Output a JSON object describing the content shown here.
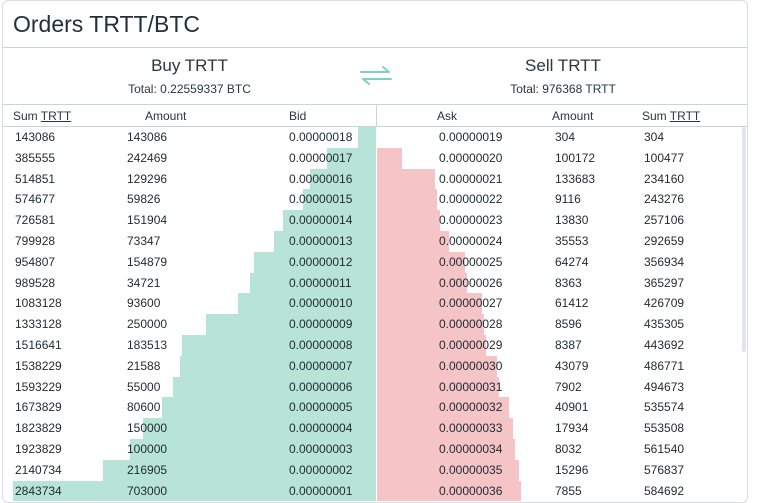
{
  "header": {
    "title": "Orders TRTT/BTC"
  },
  "buy": {
    "heading": "Buy TRTT",
    "total": "Total: 0.22559337 BTC"
  },
  "sell": {
    "heading": "Sell TRTT",
    "total": "Total: 976368 TRTT"
  },
  "columns": {
    "buy_sum_prefix": "Sum ",
    "buy_sum_unit": "TRTT",
    "buy_amount": "Amount",
    "bid": "Bid",
    "ask": "Ask",
    "sell_amount": "Amount",
    "sell_sum_prefix": "Sum ",
    "sell_sum_unit": "TRTT"
  },
  "colors": {
    "buy_depth": "#b8e4d7",
    "sell_depth": "#f5c4c7",
    "swap_icon": "#7fd0c8"
  },
  "max_sum_buy": 2843734,
  "max_sum_sell": 976368,
  "rows": [
    {
      "buy_sum": "143086",
      "buy_amount": "143086",
      "bid": "0.00000018",
      "ask": "0.00000019",
      "sell_amount": "304",
      "sell_sum": "304"
    },
    {
      "buy_sum": "385555",
      "buy_amount": "242469",
      "bid": "0.00000017",
      "ask": "0.00000020",
      "sell_amount": "100172",
      "sell_sum": "100477"
    },
    {
      "buy_sum": "514851",
      "buy_amount": "129296",
      "bid": "0.00000016",
      "ask": "0.00000021",
      "sell_amount": "133683",
      "sell_sum": "234160"
    },
    {
      "buy_sum": "574677",
      "buy_amount": "59826",
      "bid": "0.00000015",
      "ask": "0.00000022",
      "sell_amount": "9116",
      "sell_sum": "243276"
    },
    {
      "buy_sum": "726581",
      "buy_amount": "151904",
      "bid": "0.00000014",
      "ask": "0.00000023",
      "sell_amount": "13830",
      "sell_sum": "257106"
    },
    {
      "buy_sum": "799928",
      "buy_amount": "73347",
      "bid": "0.00000013",
      "ask": "0.00000024",
      "sell_amount": "35553",
      "sell_sum": "292659"
    },
    {
      "buy_sum": "954807",
      "buy_amount": "154879",
      "bid": "0.00000012",
      "ask": "0.00000025",
      "sell_amount": "64274",
      "sell_sum": "356934"
    },
    {
      "buy_sum": "989528",
      "buy_amount": "34721",
      "bid": "0.00000011",
      "ask": "0.00000026",
      "sell_amount": "8363",
      "sell_sum": "365297"
    },
    {
      "buy_sum": "1083128",
      "buy_amount": "93600",
      "bid": "0.00000010",
      "ask": "0.00000027",
      "sell_amount": "61412",
      "sell_sum": "426709"
    },
    {
      "buy_sum": "1333128",
      "buy_amount": "250000",
      "bid": "0.00000009",
      "ask": "0.00000028",
      "sell_amount": "8596",
      "sell_sum": "435305"
    },
    {
      "buy_sum": "1516641",
      "buy_amount": "183513",
      "bid": "0.00000008",
      "ask": "0.00000029",
      "sell_amount": "8387",
      "sell_sum": "443692"
    },
    {
      "buy_sum": "1538229",
      "buy_amount": "21588",
      "bid": "0.00000007",
      "ask": "0.00000030",
      "sell_amount": "43079",
      "sell_sum": "486771"
    },
    {
      "buy_sum": "1593229",
      "buy_amount": "55000",
      "bid": "0.00000006",
      "ask": "0.00000031",
      "sell_amount": "7902",
      "sell_sum": "494673"
    },
    {
      "buy_sum": "1673829",
      "buy_amount": "80600",
      "bid": "0.00000005",
      "ask": "0.00000032",
      "sell_amount": "40901",
      "sell_sum": "535574"
    },
    {
      "buy_sum": "1823829",
      "buy_amount": "150000",
      "bid": "0.00000004",
      "ask": "0.00000033",
      "sell_amount": "17934",
      "sell_sum": "553508"
    },
    {
      "buy_sum": "1923829",
      "buy_amount": "100000",
      "bid": "0.00000003",
      "ask": "0.00000034",
      "sell_amount": "8032",
      "sell_sum": "561540"
    },
    {
      "buy_sum": "2140734",
      "buy_amount": "216905",
      "bid": "0.00000002",
      "ask": "0.00000035",
      "sell_amount": "15296",
      "sell_sum": "576837"
    },
    {
      "buy_sum": "2843734",
      "buy_amount": "703000",
      "bid": "0.00000001",
      "ask": "0.00000036",
      "sell_amount": "7855",
      "sell_sum": "584692"
    }
  ]
}
